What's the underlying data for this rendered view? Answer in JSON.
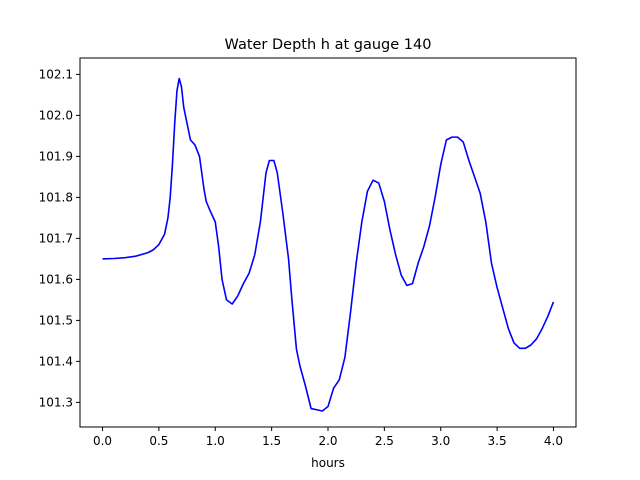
{
  "chart_data": {
    "type": "line",
    "title": "Water Depth h at gauge 140",
    "xlabel": "hours",
    "ylabel": "",
    "xlim": [
      -0.2,
      4.2
    ],
    "ylim": [
      101.24,
      102.14
    ],
    "xticks": [
      0.0,
      0.5,
      1.0,
      1.5,
      2.0,
      2.5,
      3.0,
      3.5,
      4.0
    ],
    "xtick_labels": [
      "0.0",
      "0.5",
      "1.0",
      "1.5",
      "2.0",
      "2.5",
      "3.0",
      "3.5",
      "4.0"
    ],
    "yticks": [
      101.3,
      101.4,
      101.5,
      101.6,
      101.7,
      101.8,
      101.9,
      102.0,
      102.1
    ],
    "ytick_labels": [
      "101.3",
      "101.4",
      "101.5",
      "101.6",
      "101.7",
      "101.8",
      "101.9",
      "102.0",
      "102.1"
    ],
    "grid": false,
    "series": [
      {
        "color": "#0000ff",
        "x": [
          0.0,
          0.1,
          0.2,
          0.3,
          0.4,
          0.45,
          0.5,
          0.55,
          0.58,
          0.6,
          0.62,
          0.64,
          0.66,
          0.68,
          0.7,
          0.72,
          0.75,
          0.78,
          0.82,
          0.86,
          0.88,
          0.9,
          0.92,
          0.95,
          1.0,
          1.03,
          1.06,
          1.1,
          1.15,
          1.2,
          1.25,
          1.3,
          1.35,
          1.4,
          1.45,
          1.48,
          1.52,
          1.55,
          1.6,
          1.65,
          1.68,
          1.72,
          1.75,
          1.8,
          1.85,
          1.9,
          1.95,
          2.0,
          2.05,
          2.1,
          2.15,
          2.2,
          2.25,
          2.3,
          2.35,
          2.4,
          2.45,
          2.5,
          2.55,
          2.6,
          2.65,
          2.7,
          2.75,
          2.8,
          2.85,
          2.9,
          2.95,
          3.0,
          3.05,
          3.1,
          3.15,
          3.2,
          3.25,
          3.3,
          3.35,
          3.4,
          3.45,
          3.5,
          3.55,
          3.6,
          3.65,
          3.7,
          3.75,
          3.8,
          3.85,
          3.9,
          3.95,
          4.0
        ],
        "y": [
          101.65,
          101.651,
          101.653,
          101.657,
          101.665,
          101.672,
          101.685,
          101.71,
          101.75,
          101.8,
          101.88,
          101.98,
          102.06,
          102.09,
          102.07,
          102.02,
          101.98,
          101.94,
          101.928,
          101.9,
          101.86,
          101.82,
          101.79,
          101.77,
          101.74,
          101.68,
          101.6,
          101.55,
          101.54,
          101.56,
          101.59,
          101.615,
          101.66,
          101.74,
          101.86,
          101.89,
          101.89,
          101.86,
          101.76,
          101.65,
          101.55,
          101.43,
          101.39,
          101.34,
          101.285,
          101.282,
          101.279,
          101.29,
          101.335,
          101.355,
          101.41,
          101.52,
          101.64,
          101.74,
          101.815,
          101.842,
          101.835,
          101.79,
          101.72,
          101.66,
          101.61,
          101.585,
          101.59,
          101.64,
          101.68,
          101.73,
          101.8,
          101.88,
          101.94,
          101.947,
          101.947,
          101.935,
          101.89,
          101.85,
          101.81,
          101.74,
          101.64,
          101.58,
          101.53,
          101.48,
          101.445,
          101.432,
          101.432,
          101.44,
          101.455,
          101.48,
          101.51,
          101.545
        ]
      }
    ]
  }
}
